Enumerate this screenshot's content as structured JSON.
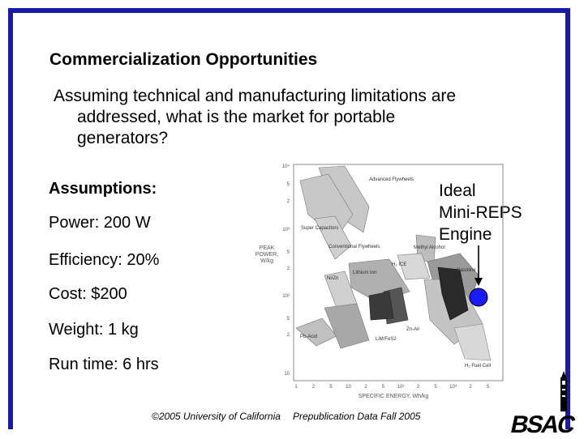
{
  "slide": {
    "title": "Commercialization Opportunities",
    "lead_line1": "Assuming technical and manufacturing limitations are",
    "lead_line2": "addressed, what is the market for portable",
    "lead_line3": "generators?"
  },
  "assumptions": {
    "heading": "Assumptions:",
    "items": [
      "Power: 200 W",
      "Efficiency: 20%",
      "Cost: $200",
      "Weight: 1 kg",
      "Run time: 6 hrs"
    ]
  },
  "callout": {
    "line1": "Ideal",
    "line2": "Mini-REPS",
    "line3": "Engine"
  },
  "chart": {
    "ylabel_lines": [
      "PEAK",
      "POWER,",
      "W/kg"
    ],
    "xlabel": "SPECIFIC ENERGY, Wh/kg",
    "yticks": [
      "10⁴",
      "5",
      "2",
      "10³",
      "5",
      "2",
      "10²",
      "5",
      "2",
      "10"
    ],
    "xticks": [
      "1",
      "2",
      "5",
      "10",
      "2",
      "5",
      "10²",
      "2",
      "5",
      "10³",
      "2",
      "5"
    ],
    "region_labels": {
      "advanced_flywheels": "Advanced Flywheels",
      "super_capacitors": "Super Capacitors",
      "conventional_flywheels": "Conventional Flywheels",
      "methyl_alcohol": "Methyl Alcohol",
      "h2_ice": "H₂ ICE",
      "lithium_ion": "Lithium Ion",
      "nizn": "Ni/Zn",
      "gasoline": "Gasoline",
      "zn_air": "Zn-Air",
      "pb_acid": "Pb-Acid",
      "lim_fes2": "LiM/FeS2",
      "h2_fuel_cell": "H₂ Fuel Cell"
    },
    "colors": {
      "region_light": "#c8c8c8",
      "region_mid": "#9a9a9a",
      "region_dark": "#2a2a2a",
      "ideal_dot": "#1a1aff"
    }
  },
  "footer": {
    "copyright": "©2005 University of California",
    "note": "Prepublication Data Fall 2005"
  },
  "logo": {
    "text": "BSAC"
  },
  "colors": {
    "frame": "#1a1aa8"
  }
}
